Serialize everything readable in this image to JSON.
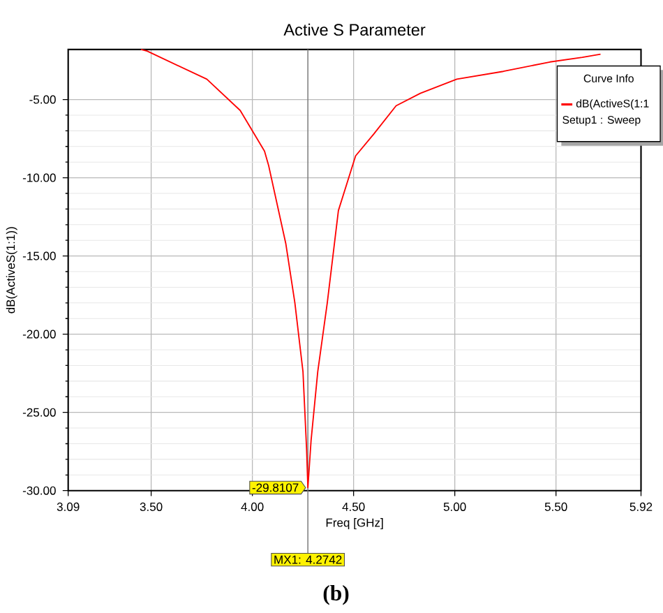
{
  "chart_data": {
    "type": "line",
    "title": "Active S Parameter",
    "xlabel": "Freq [GHz]",
    "ylabel": "dB(ActiveS(1:1))",
    "legend_title": "Curve Info",
    "x": [
      3.45,
      3.48,
      3.775,
      3.94,
      4.06,
      4.08,
      4.165,
      4.21,
      4.25,
      4.268,
      4.2742,
      4.29,
      4.323,
      4.37,
      4.425,
      4.51,
      4.6,
      4.71,
      4.83,
      5.01,
      5.24,
      5.47,
      5.63,
      5.72
    ],
    "series": [
      {
        "name": "dB(ActiveS(1:1",
        "color": "#ff0000",
        "values": [
          -1.8,
          -1.9,
          -3.7,
          -5.7,
          -8.3,
          -9.2,
          -14.2,
          -18.0,
          -22.4,
          -27.4,
          -29.8107,
          -26.8,
          -22.4,
          -18.0,
          -12.1,
          -8.6,
          -7.2,
          -5.4,
          -4.6,
          -3.7,
          -3.2,
          -2.6,
          -2.3,
          -2.1
        ]
      }
    ],
    "xlim": [
      3.09,
      5.92
    ],
    "xticks": [
      {
        "value": 3.09,
        "label": "3.09"
      },
      {
        "value": 3.5,
        "label": "3.50"
      },
      {
        "value": 4.0,
        "label": "4.00"
      },
      {
        "value": 4.5,
        "label": "4.50"
      },
      {
        "value": 5.0,
        "label": "5.00"
      },
      {
        "value": 5.5,
        "label": "5.50"
      },
      {
        "value": 5.92,
        "label": "5.92"
      }
    ],
    "ylim": [
      -30,
      -1.8
    ],
    "yticks": [
      {
        "value": -30,
        "label": "-30.00"
      },
      {
        "value": -25,
        "label": "-25.00"
      },
      {
        "value": -20,
        "label": "-20.00"
      },
      {
        "value": -15,
        "label": "-15.00"
      },
      {
        "value": -10,
        "label": "-10.00"
      },
      {
        "value": -5,
        "label": "-5.00"
      }
    ],
    "grid": true,
    "legend": "top right",
    "line_style": "solid",
    "marker": "none",
    "ref_lines": [
      {
        "axis": "x",
        "value": 4.2742,
        "label": "MX1: 4.2742",
        "color": "#808080"
      }
    ],
    "annotations": [
      {
        "text": "-29.8107",
        "x": 4.2742,
        "y": -29.8107
      },
      "Setup1 : Sweep",
      "(b)"
    ]
  }
}
